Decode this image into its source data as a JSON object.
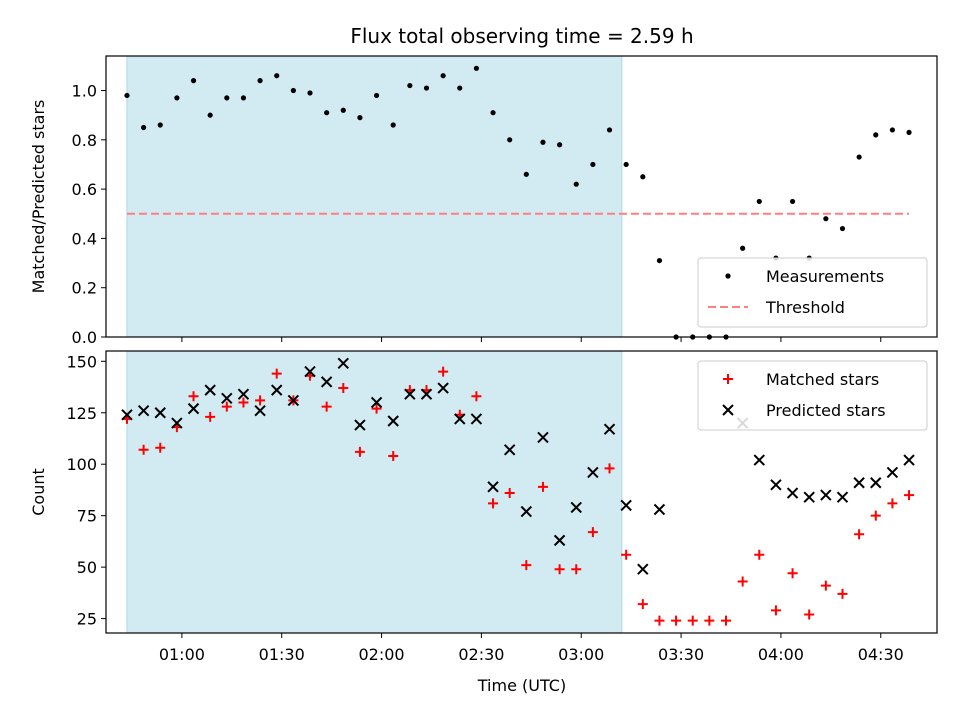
{
  "figure": {
    "title": "Flux total observing time = 2.59 h",
    "x_ticks": [
      "01:00",
      "01:30",
      "02:00",
      "02:30",
      "03:00",
      "03:30",
      "04:00",
      "04:30"
    ],
    "x_tick_minutes": [
      60,
      90,
      120,
      150,
      180,
      210,
      240,
      270
    ],
    "xlabel": "Time (UTC)",
    "xlim_minutes": [
      37.2,
      286.9
    ],
    "shaded_span_minutes": [
      43.5,
      192.2
    ],
    "shade_color": "#add8e6"
  },
  "chart_data": [
    {
      "type": "scatter",
      "ylabel": "Matched/Predicted stars",
      "ylim": [
        0,
        1.14
      ],
      "y_ticks": [
        "0.0",
        "0.2",
        "0.4",
        "0.6",
        "0.8",
        "1.0"
      ],
      "y_tick_values": [
        0,
        0.2,
        0.4,
        0.6,
        0.8,
        1.0
      ],
      "legend_position": "lower right",
      "x_minutes": [
        43.5,
        48.5,
        53.5,
        58.5,
        63.5,
        68.5,
        73.5,
        78.5,
        83.5,
        88.5,
        93.5,
        98.5,
        103.5,
        108.5,
        113.5,
        118.5,
        123.5,
        128.5,
        133.5,
        138.5,
        143.5,
        148.5,
        153.5,
        158.5,
        163.5,
        168.5,
        173.5,
        178.5,
        183.5,
        188.5,
        193.5,
        198.5,
        203.5,
        208.5,
        213.5,
        218.5,
        223.5,
        228.5,
        233.5,
        238.5,
        243.5,
        248.5,
        253.5,
        258.5,
        263.5,
        268.5,
        273.5,
        278.5
      ],
      "series": [
        {
          "name": "Measurements",
          "marker": "dot",
          "color": "#000000",
          "values": [
            0.98,
            0.85,
            0.86,
            0.97,
            1.04,
            0.9,
            0.97,
            0.97,
            1.04,
            1.06,
            1.0,
            0.99,
            0.91,
            0.92,
            0.89,
            0.98,
            0.86,
            1.02,
            1.01,
            1.06,
            1.01,
            1.09,
            0.91,
            0.8,
            0.66,
            0.79,
            0.78,
            0.62,
            0.7,
            0.84,
            0.7,
            0.65,
            0.31,
            0.0,
            0.0,
            0.0,
            0.0,
            0.36,
            0.55,
            0.32,
            0.55,
            0.32,
            0.48,
            0.44,
            0.73,
            0.82,
            0.84,
            0.83
          ]
        },
        {
          "name": "Threshold",
          "marker": "dashed-line",
          "color": "#ff7f7f",
          "x_minutes": [
            43.5,
            278.5
          ],
          "values": [
            0.5,
            0.5
          ]
        }
      ]
    },
    {
      "type": "scatter",
      "ylabel": "Count",
      "ylim": [
        18,
        155
      ],
      "y_ticks": [
        "25",
        "50",
        "75",
        "100",
        "125",
        "150"
      ],
      "y_tick_values": [
        25,
        50,
        75,
        100,
        125,
        150
      ],
      "legend_position": "upper right",
      "x_minutes": [
        43.5,
        48.5,
        53.5,
        58.5,
        63.5,
        68.5,
        73.5,
        78.5,
        83.5,
        88.5,
        93.5,
        98.5,
        103.5,
        108.5,
        113.5,
        118.5,
        123.5,
        128.5,
        133.5,
        138.5,
        143.5,
        148.5,
        153.5,
        158.5,
        163.5,
        168.5,
        173.5,
        178.5,
        183.5,
        188.5,
        193.5,
        198.5,
        203.5,
        208.5,
        213.5,
        218.5,
        223.5,
        228.5,
        233.5,
        238.5,
        243.5,
        248.5,
        253.5,
        258.5,
        263.5,
        268.5,
        273.5,
        278.5
      ],
      "series": [
        {
          "name": "Matched stars",
          "marker": "plus",
          "color": "#ff0000",
          "values": [
            122,
            107,
            108,
            118,
            133,
            123,
            128,
            130,
            131,
            144,
            131,
            143,
            128,
            137,
            106,
            127,
            104,
            136,
            136,
            145,
            124,
            133,
            81,
            86,
            51,
            89,
            49,
            49,
            67,
            98,
            56,
            32,
            24,
            24,
            24,
            24,
            24,
            43,
            56,
            29,
            47,
            27,
            41,
            37,
            66,
            75,
            81,
            85
          ]
        },
        {
          "name": "Predicted stars",
          "marker": "x",
          "color": "#000000",
          "values": [
            124,
            126,
            125,
            120,
            127,
            136,
            132,
            134,
            126,
            136,
            131,
            145,
            140,
            149,
            119,
            130,
            121,
            134,
            134,
            137,
            122,
            122,
            89,
            107,
            77,
            113,
            63,
            79,
            96,
            117,
            80,
            49,
            78,
            null,
            null,
            null,
            null,
            120,
            102,
            90,
            86,
            84,
            85,
            84,
            91,
            91,
            96,
            102
          ]
        }
      ]
    }
  ]
}
